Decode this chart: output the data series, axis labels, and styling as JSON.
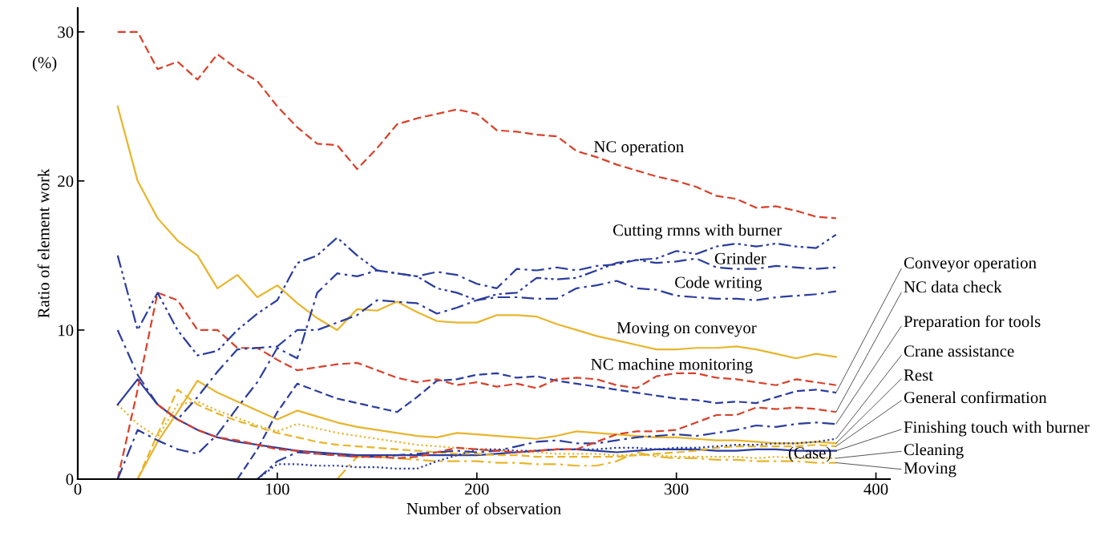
{
  "chart_data": {
    "type": "line",
    "xlabel": "Number of observation",
    "ylabel": "Ratio of element work",
    "annotations": [
      "(%)",
      "(Case)"
    ],
    "x": [
      20,
      30,
      40,
      50,
      60,
      70,
      80,
      90,
      100,
      110,
      120,
      130,
      140,
      150,
      160,
      170,
      180,
      190,
      200,
      210,
      220,
      230,
      240,
      250,
      260,
      270,
      280,
      290,
      300,
      310,
      320,
      330,
      340,
      350,
      360,
      370,
      380
    ],
    "xlim": [
      0,
      407
    ],
    "ylim": [
      0,
      31.6
    ],
    "xticks": [
      0,
      100,
      200,
      300,
      400
    ],
    "yticks": [
      0,
      10,
      20,
      30
    ],
    "grid": false,
    "legend": false,
    "marker": "none",
    "series": [
      {
        "name": "NC operation",
        "color": "#d9402a",
        "line_style": "dashed",
        "values": [
          30,
          30,
          27.5,
          28,
          26.8,
          28.5,
          27.5,
          26.7,
          25,
          23.6,
          22.5,
          22.4,
          20.8,
          22.2,
          23.8,
          24.2,
          24.5,
          24.8,
          24.5,
          23.4,
          23.3,
          23.1,
          23,
          22,
          21.6,
          21.1,
          20.7,
          20.3,
          20,
          19.6,
          19,
          18.8,
          18.2,
          18.3,
          18,
          17.6,
          17.5
        ]
      },
      {
        "name": "Cutting rmns with burner",
        "color": "#2b3d9e",
        "line_style": "dashdotdot",
        "values": [
          15,
          10,
          12.5,
          10,
          8.3,
          8.6,
          10,
          11.1,
          12,
          14.5,
          15,
          16.2,
          15,
          14,
          13.8,
          13.6,
          12.8,
          12.5,
          12,
          12.4,
          12.5,
          13.5,
          13.4,
          13.5,
          14,
          14.5,
          14.7,
          14.8,
          15.3,
          15.1,
          15.6,
          15.8,
          15.6,
          15.8,
          15.6,
          15.5,
          16.4
        ]
      },
      {
        "name": "Grinder",
        "color": "#2b3d9e",
        "line_style": "dashdot",
        "values": [
          0,
          3.3,
          2.6,
          2.0,
          1.7,
          3.0,
          4.8,
          6.5,
          8.8,
          8.1,
          12.5,
          13.8,
          13.6,
          14,
          13.8,
          13.6,
          13.9,
          13.7,
          13.1,
          12.8,
          14.1,
          14,
          14.2,
          14,
          14.3,
          14.4,
          14.7,
          14.5,
          14.6,
          14.8,
          14.2,
          14.1,
          14.1,
          14.3,
          14.2,
          14.1,
          14.2
        ]
      },
      {
        "name": "Code writing",
        "color": "#2b3d9e",
        "line_style": "dashdot",
        "values": [
          10,
          7,
          5,
          4,
          5.5,
          7.2,
          8.7,
          8.8,
          8.9,
          10,
          10,
          10.5,
          11,
          12,
          11.9,
          11.8,
          11.1,
          11.5,
          12,
          12.2,
          12.2,
          12.1,
          12.1,
          12.8,
          13,
          13.3,
          12.8,
          12.7,
          12.3,
          12.2,
          12.1,
          12.1,
          12,
          12.2,
          12.3,
          12.4,
          12.6
        ]
      },
      {
        "name": "Moving on conveyor",
        "color": "#e8b52c",
        "line_style": "solid",
        "values": [
          25,
          20,
          17.5,
          16,
          15,
          12.8,
          13.7,
          12.2,
          13,
          11.8,
          10.8,
          10,
          11.4,
          11.3,
          11.9,
          11.2,
          10.6,
          10.5,
          10.5,
          11,
          11,
          10.9,
          10.4,
          10,
          9.6,
          9.3,
          9,
          8.7,
          8.7,
          8.8,
          8.8,
          8.9,
          8.7,
          8.4,
          8.1,
          8.4,
          8.2
        ]
      },
      {
        "name": "NC machine monitoring",
        "color": "#d9402a",
        "line_style": "dashed",
        "values": [
          0,
          6,
          12.5,
          12,
          10,
          10,
          8.8,
          8.8,
          8,
          7.3,
          7.5,
          7.7,
          7.8,
          7.3,
          6.8,
          6.5,
          6.7,
          6.3,
          6.5,
          6.2,
          6.4,
          6.1,
          6.7,
          6.8,
          6.7,
          6.3,
          6.1,
          6.9,
          7.1,
          7.1,
          6.8,
          6.7,
          6.5,
          6.3,
          6.7,
          6.5,
          6.3
        ]
      },
      {
        "name": "Conveyor operation",
        "color": "#2b3d9e",
        "line_style": "dashed",
        "values": [
          null,
          null,
          null,
          null,
          null,
          null,
          0,
          2,
          4.5,
          6.4,
          5.9,
          5.4,
          5.1,
          4.8,
          4.5,
          5.5,
          6.6,
          6.7,
          7,
          7.1,
          6.8,
          6.9,
          6.6,
          6.4,
          6.2,
          6,
          5.8,
          5.6,
          5.4,
          5.3,
          5.1,
          5.2,
          5.1,
          5.5,
          5.9,
          6.0,
          5.8
        ]
      },
      {
        "name": "NC data check",
        "color": "#d9402a",
        "line_style": "dashed",
        "values": [
          null,
          null,
          5,
          4,
          3.3,
          2.8,
          2.6,
          2.3,
          2,
          1.9,
          1.7,
          1.6,
          1.5,
          1.5,
          1.4,
          1.5,
          1.8,
          2.1,
          2.0,
          1.9,
          1.8,
          1.9,
          2.0,
          2.0,
          2.5,
          3.0,
          3.2,
          3.2,
          3.3,
          3.8,
          4.3,
          4.3,
          4.8,
          4.7,
          4.8,
          4.7,
          4.5
        ]
      },
      {
        "name": "Preparation for tools",
        "color": "#2b3d9e",
        "line_style": "dashdot",
        "values": [
          null,
          null,
          null,
          null,
          null,
          null,
          null,
          0,
          1.2,
          1.8,
          1.7,
          1.6,
          1.5,
          1.5,
          1.6,
          1.7,
          1.8,
          1.9,
          1.8,
          1.9,
          2.2,
          2.5,
          2.6,
          2.4,
          2.4,
          2.6,
          2.8,
          2.9,
          3.0,
          2.9,
          3.1,
          3.3,
          3.6,
          3.5,
          3.7,
          3.8,
          3.7
        ]
      },
      {
        "name": "Crane assistance",
        "color": "#2b3d9e",
        "line_style": "dotted",
        "values": [
          null,
          null,
          null,
          null,
          null,
          null,
          null,
          0,
          1.0,
          1.0,
          0.9,
          0.9,
          0.8,
          0.8,
          0.7,
          0.7,
          1.2,
          1.6,
          2.0,
          2.0,
          1.9,
          1.9,
          2.0,
          2.0,
          2.0,
          2.1,
          2.1,
          2.0,
          2.1,
          2.1,
          2.2,
          2.3,
          2.3,
          2.4,
          2.4,
          2.5,
          2.7
        ]
      },
      {
        "name": "Rest",
        "color": "#e8b52c",
        "line_style": "solid",
        "values": [
          null,
          0,
          2.5,
          4.5,
          6.6,
          5.8,
          5.2,
          4.6,
          4.0,
          4.6,
          4.2,
          3.8,
          3.5,
          3.3,
          3.1,
          2.9,
          2.8,
          3.1,
          3.0,
          2.9,
          2.8,
          2.7,
          2.9,
          3.2,
          3.1,
          3.0,
          2.9,
          2.8,
          2.8,
          2.7,
          2.6,
          2.6,
          2.5,
          2.4,
          2.4,
          2.5,
          2.4
        ]
      },
      {
        "name": "General confirmation",
        "color": "#e8b52c",
        "line_style": "dashed",
        "values": [
          null,
          0,
          3,
          6,
          5,
          4.4,
          3.9,
          3.5,
          3.1,
          2.8,
          2.5,
          2.3,
          2.2,
          2.1,
          2.0,
          1.9,
          1.8,
          1.7,
          1.7,
          1.6,
          1.6,
          1.5,
          1.5,
          1.5,
          1.5,
          1.5,
          1.6,
          1.7,
          1.8,
          1.9,
          2.1,
          2.2,
          2.2,
          2.2,
          2.2,
          2.3,
          2.2
        ]
      },
      {
        "name": "Finishing touch with burner",
        "color": "#2b3d9e",
        "line_style": "solid",
        "values": [
          5,
          6.7,
          5,
          4,
          3.3,
          2.8,
          2.5,
          2.3,
          2.1,
          1.9,
          1.8,
          1.7,
          1.6,
          1.6,
          1.6,
          1.6,
          1.6,
          1.6,
          1.6,
          1.7,
          1.8,
          1.9,
          2.0,
          2.0,
          1.9,
          1.8,
          1.9,
          2.0,
          2.0,
          2.0,
          1.9,
          1.9,
          2.0,
          2.0,
          1.9,
          1.9,
          1.9
        ]
      },
      {
        "name": "Cleaning",
        "color": "#e8b52c",
        "line_style": "dotted",
        "values": [
          5,
          3.7,
          2.8,
          5,
          5.2,
          4.6,
          4.1,
          3.6,
          3.2,
          3.7,
          3.4,
          3.1,
          2.9,
          2.7,
          2.5,
          2.3,
          2.2,
          2.1,
          2.0,
          1.9,
          1.8,
          1.8,
          1.7,
          1.7,
          1.7,
          1.6,
          1.6,
          1.6,
          1.5,
          1.5,
          1.5,
          1.5,
          1.4,
          1.5,
          1.4,
          1.4,
          1.4
        ]
      },
      {
        "name": "Moving",
        "color": "#e8b52c",
        "line_style": "dashdot",
        "values": [
          null,
          null,
          null,
          null,
          null,
          null,
          null,
          null,
          null,
          null,
          null,
          0,
          1.5,
          1.5,
          1.4,
          1.3,
          1.2,
          1.2,
          1.2,
          1.1,
          1.1,
          1.0,
          1.0,
          0.9,
          0.9,
          1.2,
          1.8,
          1.5,
          1.4,
          1.4,
          1.3,
          1.3,
          1.2,
          1.2,
          1.2,
          1.1,
          1.1
        ]
      }
    ]
  }
}
